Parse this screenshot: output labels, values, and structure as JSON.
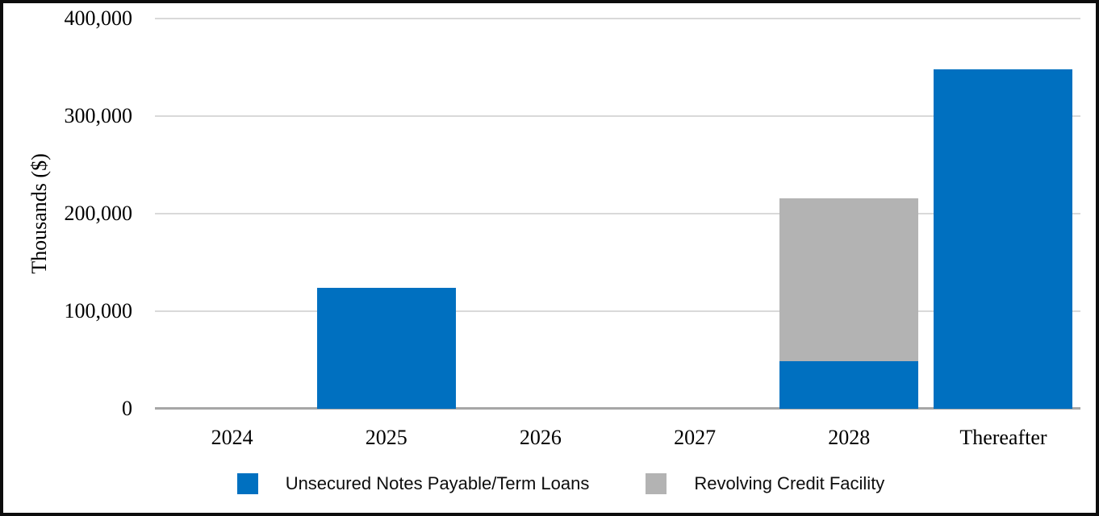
{
  "chart_data": {
    "type": "bar",
    "stacked": true,
    "title": "",
    "xlabel": "",
    "ylabel": "Thousands ($)",
    "categories": [
      "2024",
      "2025",
      "2026",
      "2027",
      "2028",
      "Thereafter"
    ],
    "series": [
      {
        "name": "Unsecured Notes Payable/Term Loans",
        "color": "#0070C0",
        "values": [
          0,
          124000,
          0,
          0,
          49000,
          348000
        ]
      },
      {
        "name": "Revolving Credit Facility",
        "color": "#B3B3B3",
        "values": [
          0,
          0,
          0,
          0,
          167000,
          0
        ]
      }
    ],
    "ylim": [
      0,
      400000
    ],
    "ytick_interval": 100000,
    "ytick_labels": [
      "400,000",
      "300,000",
      "200,000",
      "100,000",
      "0"
    ],
    "grid": true,
    "legend_position": "bottom",
    "gridline_color": "#D9D9D9",
    "axis_line_color": "#A6A6A6",
    "border_color": "#0D0D0D"
  }
}
